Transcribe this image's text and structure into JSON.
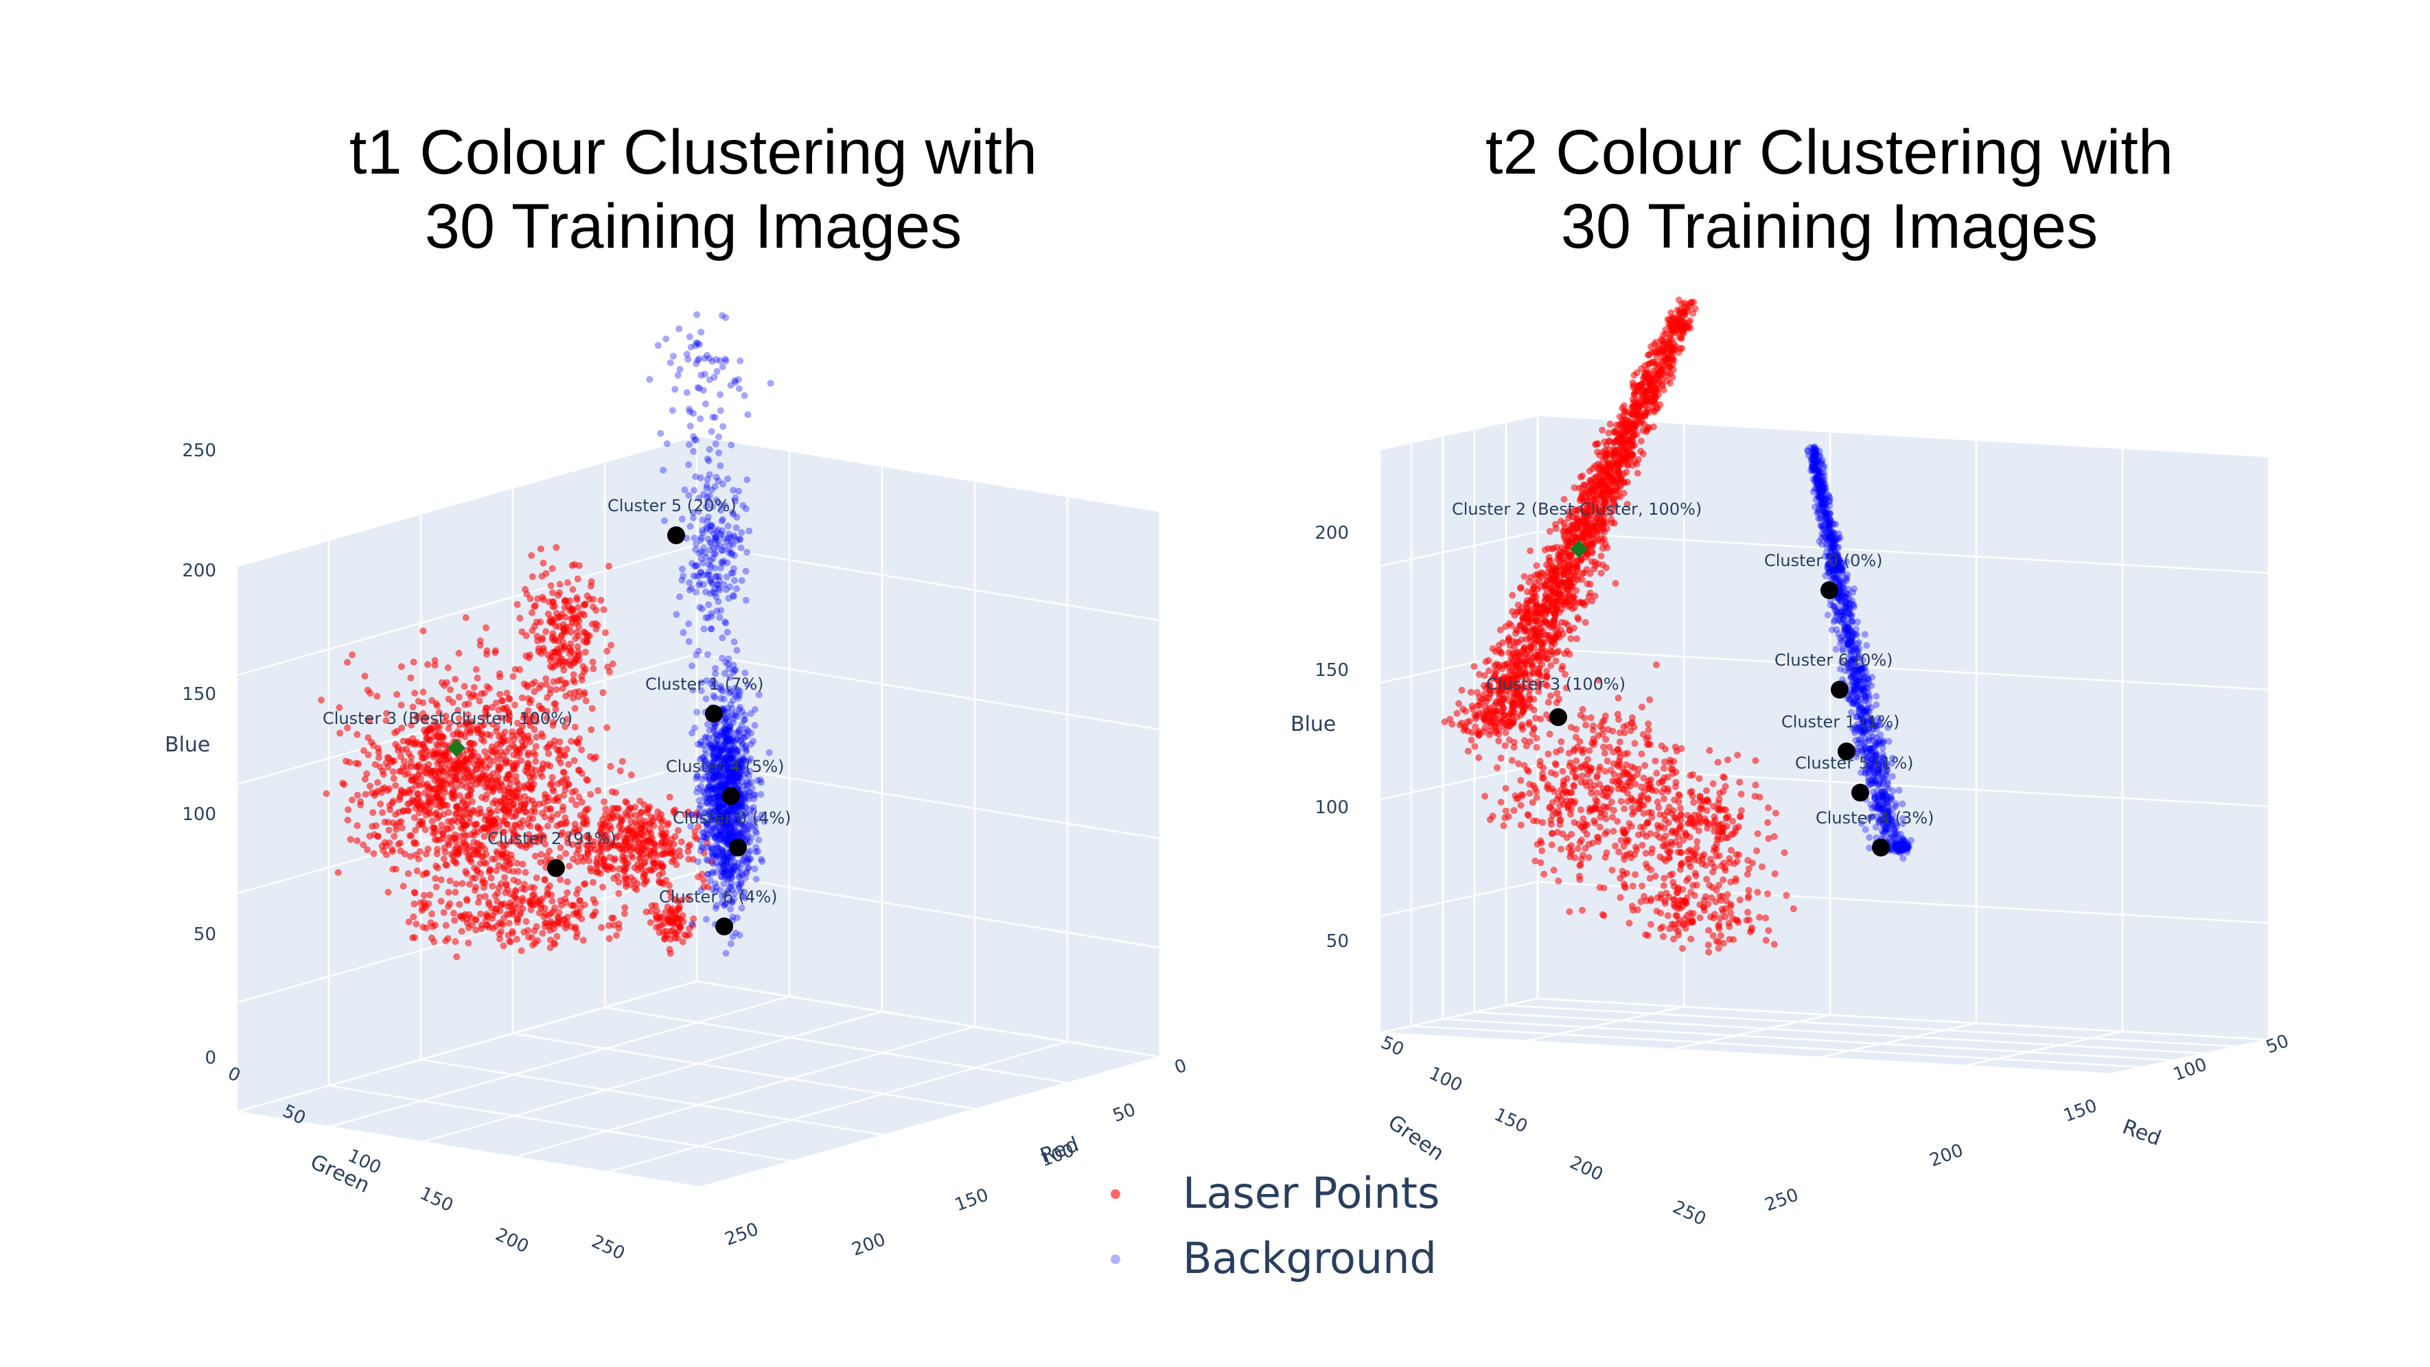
{
  "chart_data": [
    {
      "type": "scatter3d",
      "title": "t1 Colour Clustering with\n30 Training Images",
      "axes": {
        "x": {
          "label": "Red",
          "ticks": [
            "0",
            "50",
            "100",
            "150",
            "200",
            "250"
          ],
          "range": [
            0,
            255
          ]
        },
        "y": {
          "label": "Green",
          "ticks": [
            "0",
            "50",
            "100",
            "150",
            "200",
            "250"
          ],
          "range": [
            0,
            255
          ]
        },
        "z": {
          "label": "Blue",
          "ticks": [
            "0",
            "50",
            "100",
            "150",
            "200",
            "250"
          ],
          "range": [
            0,
            255
          ]
        }
      },
      "clusters": [
        {
          "label": "Cluster 5 (20%)",
          "best": false
        },
        {
          "label": "Cluster 1 (7%)",
          "best": false
        },
        {
          "label": "Cluster 3 (Best Cluster, 100%)",
          "best": true
        },
        {
          "label": "Cluster 4 (5%)",
          "best": false
        },
        {
          "label": "Cluster 0 (4%)",
          "best": false
        },
        {
          "label": "Cluster 2 (91%)",
          "best": false
        },
        {
          "label": "Cluster 6 (4%)",
          "best": false
        }
      ]
    },
    {
      "type": "scatter3d",
      "title": "t2 Colour Clustering with\n30 Training Images",
      "axes": {
        "x": {
          "label": "Red",
          "ticks": [
            "50",
            "100",
            "150",
            "200",
            "250"
          ],
          "range": [
            50,
            255
          ]
        },
        "y": {
          "label": "Green",
          "ticks": [
            "50",
            "100",
            "150",
            "200",
            "250"
          ],
          "range": [
            50,
            255
          ]
        },
        "z": {
          "label": "Blue",
          "ticks": [
            "50",
            "100",
            "150",
            "200"
          ],
          "range": [
            30,
            255
          ]
        }
      },
      "clusters": [
        {
          "label": "Cluster 2 (Best Cluster, 100%)",
          "best": true
        },
        {
          "label": "Cluster 0 (0%)",
          "best": false
        },
        {
          "label": "Cluster 6 (0%)",
          "best": false
        },
        {
          "label": "Cluster 3 (100%)",
          "best": false
        },
        {
          "label": "Cluster 1 (1%)",
          "best": false
        },
        {
          "label": "Cluster 5 (1%)",
          "best": false
        },
        {
          "label": "Cluster 4 (3%)",
          "best": false
        }
      ]
    }
  ],
  "legend": {
    "placement": "bottom-center",
    "items": [
      {
        "label": "Laser Points",
        "color": "#ff0000"
      },
      {
        "label": "Background",
        "color": "#0000ff"
      }
    ]
  },
  "colors": {
    "scene_background": "#e5ecf6",
    "grid": "#ffffff",
    "laser": "#ff0000",
    "background_points": "#0000ff",
    "cluster_center": "#000000",
    "best_cluster": "#1a7a1a"
  }
}
